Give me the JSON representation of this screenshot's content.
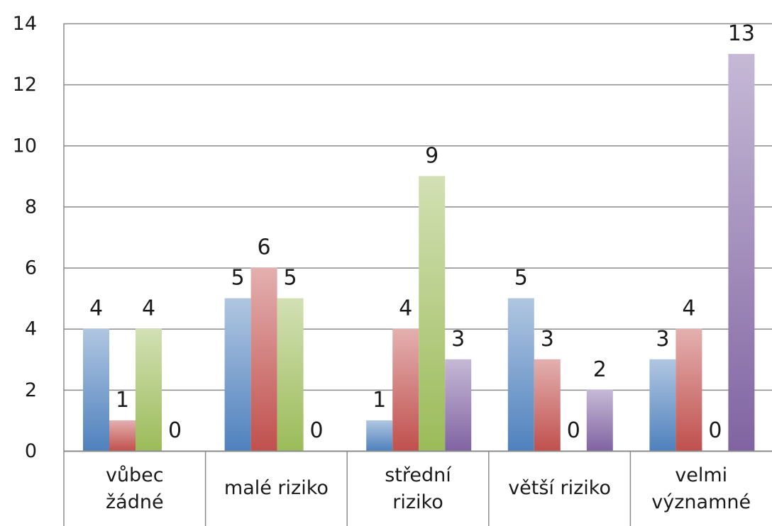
{
  "chart_data": {
    "type": "bar",
    "categories": [
      [
        "vůbec",
        "žádné"
      ],
      [
        "malé riziko"
      ],
      [
        "střední",
        "riziko"
      ],
      [
        "větší riziko"
      ],
      [
        "velmi",
        "významné"
      ]
    ],
    "series": [
      {
        "values": [
          4,
          5,
          1,
          5,
          3
        ],
        "color": "#4f81bd"
      },
      {
        "values": [
          1,
          6,
          4,
          3,
          4
        ],
        "color": "#c0504d"
      },
      {
        "values": [
          4,
          5,
          9,
          0,
          0
        ],
        "color": "#9bbb59"
      },
      {
        "values": [
          0,
          0,
          3,
          2,
          13
        ],
        "color": "#8064a2"
      }
    ],
    "data_labels": [
      [
        "4",
        "1",
        "4",
        "0"
      ],
      [
        "5",
        "6",
        "5",
        "0"
      ],
      [
        "1",
        "4",
        "9",
        "3"
      ],
      [
        "5",
        "3",
        "0",
        "2"
      ],
      [
        "3",
        "4",
        "0",
        "13"
      ]
    ],
    "y_ticks": [
      "0",
      "2",
      "4",
      "6",
      "8",
      "10",
      "12",
      "14"
    ],
    "ylim": [
      0,
      14
    ],
    "grid": true,
    "legend": "none",
    "title": "",
    "xlabel": "",
    "ylabel": ""
  }
}
